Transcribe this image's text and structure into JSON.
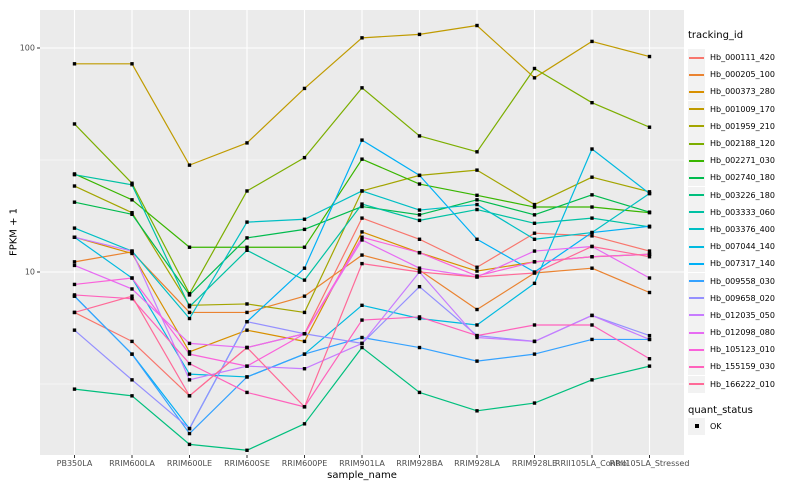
{
  "colors": {
    "panel_bg": "#EBEBEB",
    "grid": "#FFFFFF",
    "tick_mark": "#333333",
    "tick_text": "#4D4D4D",
    "marker": "#000000",
    "legend_key_bg": "#F2F2F2"
  },
  "chart_data": {
    "type": "line",
    "title": "",
    "xlabel": "sample_name",
    "ylabel": "FPKM + 1",
    "y_scale": "log10",
    "ylim": [
      1.5,
      160
    ],
    "grid": "on",
    "legend_position": "right",
    "y_ticks": [
      {
        "label": "100",
        "value": 100
      },
      {
        "label": "10",
        "value": 10
      }
    ],
    "y_minor": [
      31.62,
      3.162
    ],
    "categories": [
      "PB350LA",
      "RRIM600LA",
      "RRIM600LE",
      "RRIM600SE",
      "RRIM600PE",
      "RRIM901LA",
      "RRIM928BA",
      "RRIM928LA",
      "RRIM928LE",
      "RRII105LA_Control",
      "RRII105LA_Stressed"
    ],
    "legend": {
      "title": "tracking_id"
    },
    "quant_legend": {
      "title": "quant_status",
      "items": [
        {
          "label": "OK",
          "marker": "black-square"
        }
      ]
    },
    "series": [
      {
        "name": "Hb_000111_420",
        "color": "#F8766D",
        "values": [
          6.6,
          4.9,
          2.8,
          4.6,
          5.3,
          17.4,
          14,
          10.5,
          14.9,
          14.5,
          12.4
        ]
      },
      {
        "name": "Hb_000205_100",
        "color": "#EA8331",
        "values": [
          11.1,
          12.3,
          6.6,
          6.6,
          7.8,
          11.9,
          10.2,
          6.8,
          9.9,
          10.4,
          8.1
        ]
      },
      {
        "name": "Hb_000373_280",
        "color": "#D89000",
        "values": [
          14.3,
          12.1,
          4.4,
          5.5,
          4.9,
          15.1,
          12.2,
          10.1,
          11.1,
          11.7,
          12
        ]
      },
      {
        "name": "Hb_001009_170",
        "color": "#C09B00",
        "values": [
          85,
          85,
          30,
          37.7,
          66,
          111,
          115,
          126,
          73.6,
          107,
          91.6
        ]
      },
      {
        "name": "Hb_001959_210",
        "color": "#A3A500",
        "values": [
          24.2,
          18.4,
          7.1,
          7.2,
          6.6,
          23,
          27,
          28.5,
          20,
          26.5,
          22.8
        ]
      },
      {
        "name": "Hb_002188_120",
        "color": "#7CAE00",
        "values": [
          45.8,
          24.9,
          8,
          23,
          32.4,
          66.4,
          40.5,
          34.4,
          81,
          57,
          44.3
        ]
      },
      {
        "name": "Hb_002271_030",
        "color": "#39B600",
        "values": [
          27.4,
          21,
          12.9,
          12.9,
          12.9,
          31.9,
          24.7,
          22,
          19.5,
          19.5,
          18.4
        ]
      },
      {
        "name": "Hb_002740_180",
        "color": "#00BB4E",
        "values": [
          20.5,
          18.1,
          7.9,
          14.2,
          15.5,
          19.6,
          18,
          21,
          18,
          22.1,
          18.5
        ]
      },
      {
        "name": "Hb_003226_180",
        "color": "#00BF7D",
        "values": [
          3,
          2.8,
          1.7,
          1.6,
          2.1,
          4.6,
          2.9,
          2.4,
          2.6,
          3.3,
          3.8
        ]
      },
      {
        "name": "Hb_003333_060",
        "color": "#00C1A3",
        "values": [
          27.2,
          24.5,
          7,
          12.5,
          9.2,
          20.1,
          17,
          19,
          16.5,
          17.4,
          15.9
        ]
      },
      {
        "name": "Hb_003376_400",
        "color": "#00BFC4",
        "values": [
          15.7,
          12.4,
          6.2,
          16.7,
          17.2,
          23,
          18.9,
          20,
          14,
          15,
          22.4
        ]
      },
      {
        "name": "Hb_007044_140",
        "color": "#00BAE0",
        "values": [
          14.3,
          9.4,
          3.5,
          3.4,
          4.3,
          7.1,
          6.2,
          5.8,
          8.9,
          35.4,
          22.4
        ]
      },
      {
        "name": "Hb_007317_140",
        "color": "#00B0F6",
        "values": [
          7.8,
          4.3,
          2,
          6,
          10.4,
          38.8,
          27,
          14,
          10,
          15,
          16
        ]
      },
      {
        "name": "Hb_009558_030",
        "color": "#35A2FF",
        "values": [
          7.8,
          4.3,
          1.9,
          3.4,
          4.3,
          5.1,
          4.6,
          4,
          4.3,
          5,
          5
        ]
      },
      {
        "name": "Hb_009658_020",
        "color": "#9590FF",
        "values": [
          5.5,
          3.3,
          2,
          6,
          5.3,
          4.8,
          8.6,
          5.2,
          4.9,
          6.4,
          5.2
        ]
      },
      {
        "name": "Hb_012035_050",
        "color": "#C77CFF",
        "values": [
          14.3,
          12.4,
          3.3,
          3.8,
          3.7,
          4.8,
          10,
          5.1,
          4.9,
          6.4,
          5
        ]
      },
      {
        "name": "Hb_012098_080",
        "color": "#E76BF3",
        "values": [
          10.7,
          8.4,
          4.8,
          4.6,
          5.3,
          13.9,
          10.4,
          9.5,
          12.4,
          13,
          9.4
        ]
      },
      {
        "name": "Hb_105123_010",
        "color": "#FA62DB",
        "values": [
          8.8,
          9.4,
          4.3,
          3.8,
          5.3,
          14.3,
          12.2,
          9.6,
          11.1,
          11.7,
          12
        ]
      },
      {
        "name": "Hb_155159_030",
        "color": "#FF62BC",
        "values": [
          7.9,
          7.6,
          3.9,
          2.9,
          2.5,
          6.1,
          6.3,
          5.2,
          5.8,
          5.8,
          4.1
        ]
      },
      {
        "name": "Hb_166222_010",
        "color": "#FF6A98",
        "values": [
          6.6,
          7.8,
          2.8,
          4.6,
          2.5,
          10.9,
          10,
          9.5,
          9.9,
          13,
          11.7
        ]
      }
    ]
  }
}
